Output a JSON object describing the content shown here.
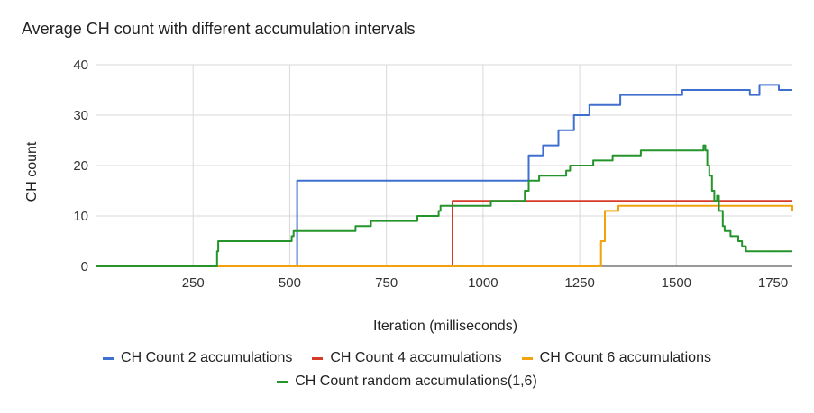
{
  "chart_data": {
    "type": "line",
    "title": "Average CH count with different accumulation intervals",
    "xlabel": "Iteration (milliseconds)",
    "ylabel": "CH count",
    "xlim": [
      0,
      1800
    ],
    "ylim": [
      0,
      40
    ],
    "xticks": [
      250,
      500,
      750,
      1000,
      1250,
      1500,
      1750
    ],
    "yticks": [
      0,
      10,
      20,
      30,
      40
    ],
    "grid": true,
    "legend_position": "bottom",
    "series": [
      {
        "name": "CH Count 2 accumulations",
        "color": "#3f6fcf",
        "x": [
          0,
          518,
          519,
          1115,
          1118,
          1155,
          1195,
          1235,
          1275,
          1355,
          1515,
          1690,
          1715,
          1765,
          1800
        ],
        "y": [
          0,
          0,
          17,
          17,
          22,
          24,
          27,
          30,
          32,
          34,
          35,
          34,
          36,
          35,
          35
        ]
      },
      {
        "name": "CH Count 4 accumulations",
        "color": "#d63b2a",
        "x": [
          0,
          918,
          921,
          1800
        ],
        "y": [
          0,
          0,
          13,
          13
        ]
      },
      {
        "name": "CH Count 6 accumulations",
        "color": "#f1a20c",
        "x": [
          0,
          1295,
          1305,
          1315,
          1350,
          1795,
          1800
        ],
        "y": [
          0,
          0,
          5,
          11,
          12,
          12,
          11
        ]
      },
      {
        "name": "CH Count random accumulations(1,6)",
        "color": "#25952b",
        "x": [
          0,
          310,
          312,
          315,
          500,
          505,
          510,
          670,
          710,
          830,
          885,
          890,
          900,
          1020,
          1040,
          1100,
          1108,
          1118,
          1128,
          1145,
          1180,
          1215,
          1225,
          1285,
          1325,
          1335,
          1370,
          1408,
          1570,
          1575,
          1580,
          1585,
          1592,
          1598,
          1605,
          1610,
          1620,
          1625,
          1640,
          1660,
          1670,
          1680,
          1690,
          1800
        ],
        "y": [
          0,
          0,
          3,
          5,
          5,
          6,
          7,
          8,
          9,
          10,
          11,
          12,
          12,
          13,
          13,
          13,
          15,
          17,
          17,
          18,
          18,
          19,
          20,
          21,
          21,
          22,
          22,
          23,
          24,
          23,
          20,
          18,
          15,
          13,
          14,
          11,
          8,
          7,
          6,
          5,
          4,
          3,
          3,
          3
        ]
      }
    ]
  }
}
